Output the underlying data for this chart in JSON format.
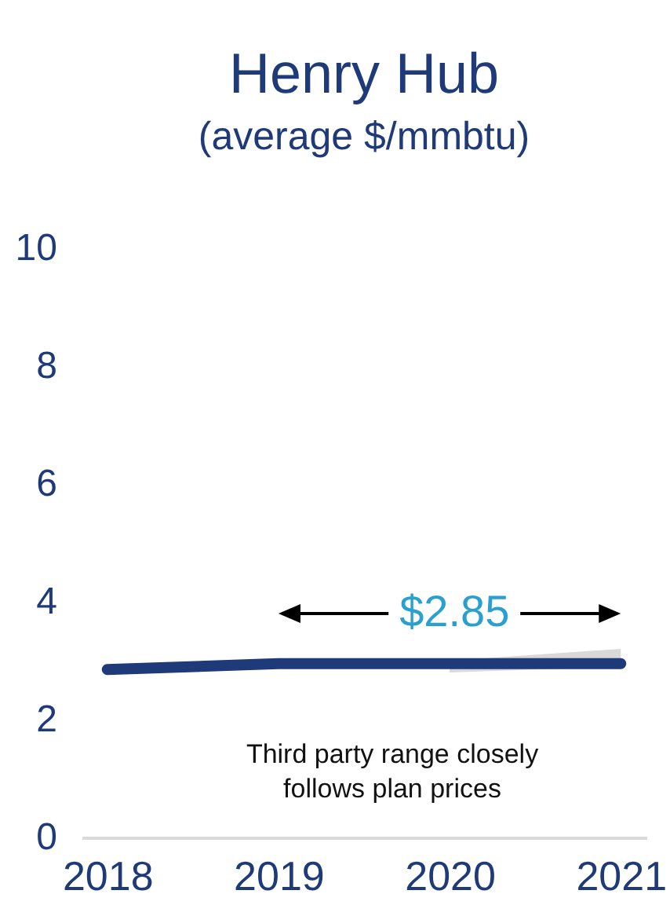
{
  "chart_data": {
    "type": "line",
    "title": "Henry Hub",
    "subtitle": "(average $/mmbtu)",
    "categories": [
      "2018",
      "2019",
      "2020",
      "2021"
    ],
    "series": [
      {
        "color": "#1f3a78",
        "values": [
          2.85,
          2.95,
          2.95,
          2.95
        ],
        "lower": [
          null,
          null,
          2.8,
          2.9
        ],
        "upper": [
          null,
          null,
          3.0,
          3.2
        ]
      }
    ],
    "ylim": [
      0,
      10
    ],
    "yticks": [
      0,
      2,
      4,
      6,
      8,
      10
    ],
    "grid": false,
    "marker": "none",
    "line_style": "solid",
    "annotations": [
      "$2.85",
      "Third party range closely follows plan prices"
    ]
  }
}
